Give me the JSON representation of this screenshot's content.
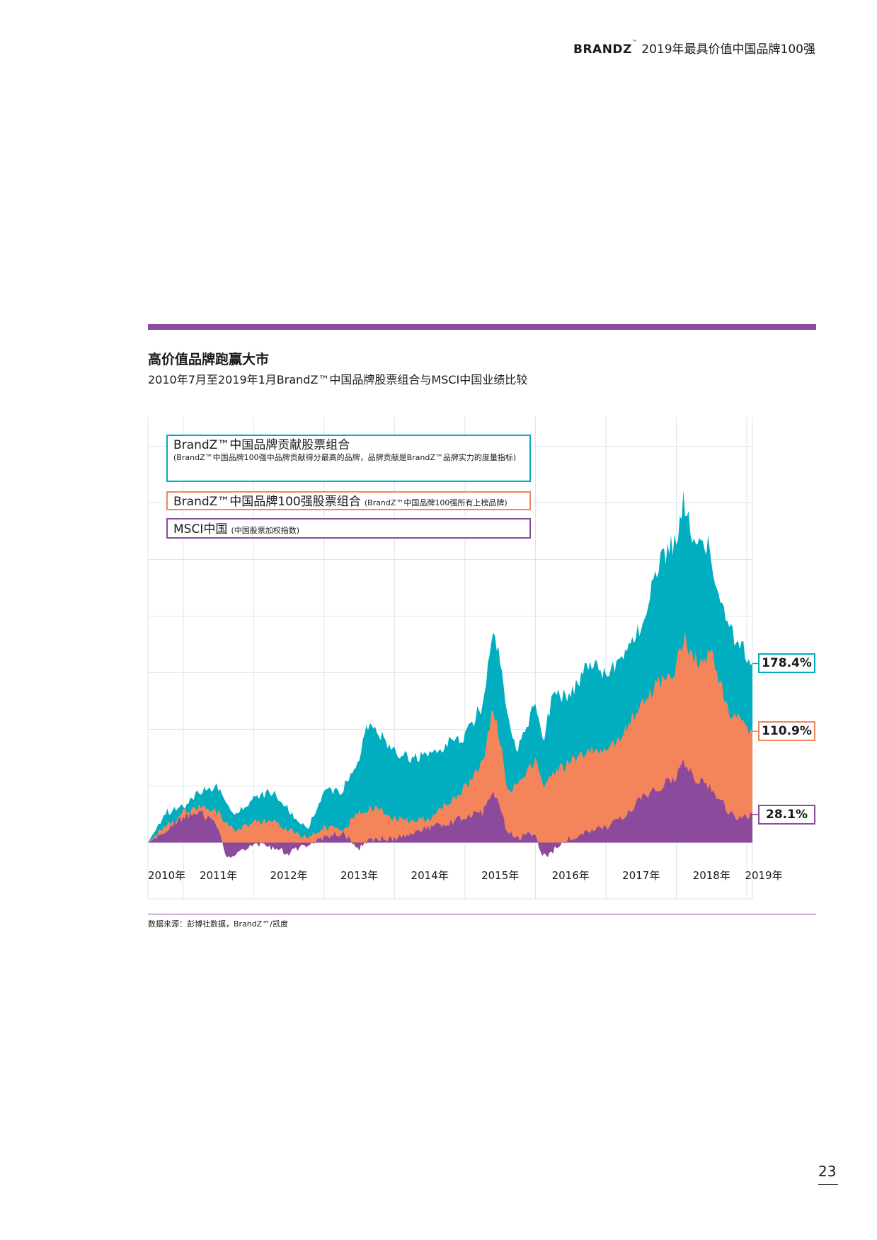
{
  "header": {
    "brand": "BRANDZ",
    "tm": "™",
    "title": "2019年最具价值中国品牌100强"
  },
  "section": {
    "title": "高价值品牌跑赢大市",
    "subtitle": "2010年7月至2019年1月BrandZ™中国品牌股票组合与MSCI中国业绩比较"
  },
  "colors": {
    "accent": "#8B4A9C",
    "teal": "#00AEC0",
    "orange": "#F4845A",
    "purple": "#8B4A9C",
    "grid": "#DCE6EA"
  },
  "legend": [
    {
      "label": "BrandZ™中国品牌贡献股票组合",
      "note": "(BrandZ™中国品牌100强中品牌贡献得分最高的品牌，品牌贡献是BrandZ™品牌实力的度量指标)"
    },
    {
      "label": "BrandZ™中国品牌100强股票组合",
      "note": "(BrandZ™中国品牌100强所有上榜品牌)"
    },
    {
      "label": "MSCI中国",
      "note": "(中国股票加权指数)"
    }
  ],
  "chart_data": {
    "type": "area",
    "title": "高价值品牌跑赢大市",
    "xlabel": "",
    "ylabel": "",
    "unit": "%",
    "xlim": [
      2010.5,
      2019.08
    ],
    "ylim": [
      -56,
      424
    ],
    "grid": true,
    "legend_placement": "top-left",
    "x_ticks": [
      "2010年",
      "2011年",
      "2012年",
      "2013年",
      "2014年",
      "2015年",
      "2016年",
      "2017年",
      "2018年",
      "2019年"
    ],
    "x": [
      2010.5,
      2010.75,
      2011.0,
      2011.25,
      2011.5,
      2011.6,
      2011.75,
      2012.0,
      2012.25,
      2012.5,
      2012.75,
      2013.0,
      2013.25,
      2013.5,
      2013.6,
      2013.75,
      2014.0,
      2014.25,
      2014.5,
      2014.75,
      2015.0,
      2015.25,
      2015.4,
      2015.5,
      2015.6,
      2015.75,
      2016.0,
      2016.1,
      2016.25,
      2016.5,
      2016.75,
      2017.0,
      2017.25,
      2017.5,
      2017.75,
      2018.0,
      2018.1,
      2018.25,
      2018.4,
      2018.5,
      2018.6,
      2018.75,
      2018.9,
      2019.08
    ],
    "series": [
      {
        "name": "BrandZ™中国品牌贡献股票组合",
        "color": "#00AEC0",
        "end_label": "178.4%",
        "values": [
          0,
          30,
          35,
          51,
          55,
          40,
          28,
          43,
          51,
          32,
          12,
          51,
          51,
          83,
          118,
          110,
          91,
          83,
          87,
          99,
          106,
          138,
          213,
          177,
          130,
          91,
          138,
          99,
          146,
          146,
          177,
          170,
          186,
          217,
          280,
          304,
          343,
          296,
          304,
          288,
          241,
          209,
          201,
          178.4
        ]
      },
      {
        "name": "BrandZ™中国品牌100强股票组合",
        "color": "#F4845A",
        "end_label": "110.9%",
        "values": [
          0,
          15,
          30,
          35,
          30,
          18,
          12,
          20,
          22,
          12,
          5,
          15,
          12,
          30,
          33,
          35,
          25,
          20,
          25,
          40,
          55,
          80,
          134,
          100,
          55,
          55,
          85,
          55,
          70,
          80,
          95,
          90,
          110,
          140,
          160,
          175,
          205,
          185,
          180,
          195,
          165,
          130,
          125,
          110.9
        ]
      },
      {
        "name": "MSCI中国",
        "color": "#8B4A9C",
        "end_label": "28.1%",
        "values": [
          0,
          10,
          25,
          30,
          15,
          -15,
          -10,
          0,
          -5,
          -10,
          -3,
          5,
          10,
          -5,
          0,
          5,
          3,
          10,
          15,
          20,
          25,
          30,
          48,
          35,
          10,
          5,
          10,
          -15,
          -8,
          5,
          10,
          15,
          25,
          45,
          55,
          65,
          80,
          65,
          60,
          55,
          45,
          30,
          25,
          28.1
        ]
      }
    ]
  },
  "source": "数据来源：彭博社数据，BrandZ™/凯度",
  "page_number": "23"
}
